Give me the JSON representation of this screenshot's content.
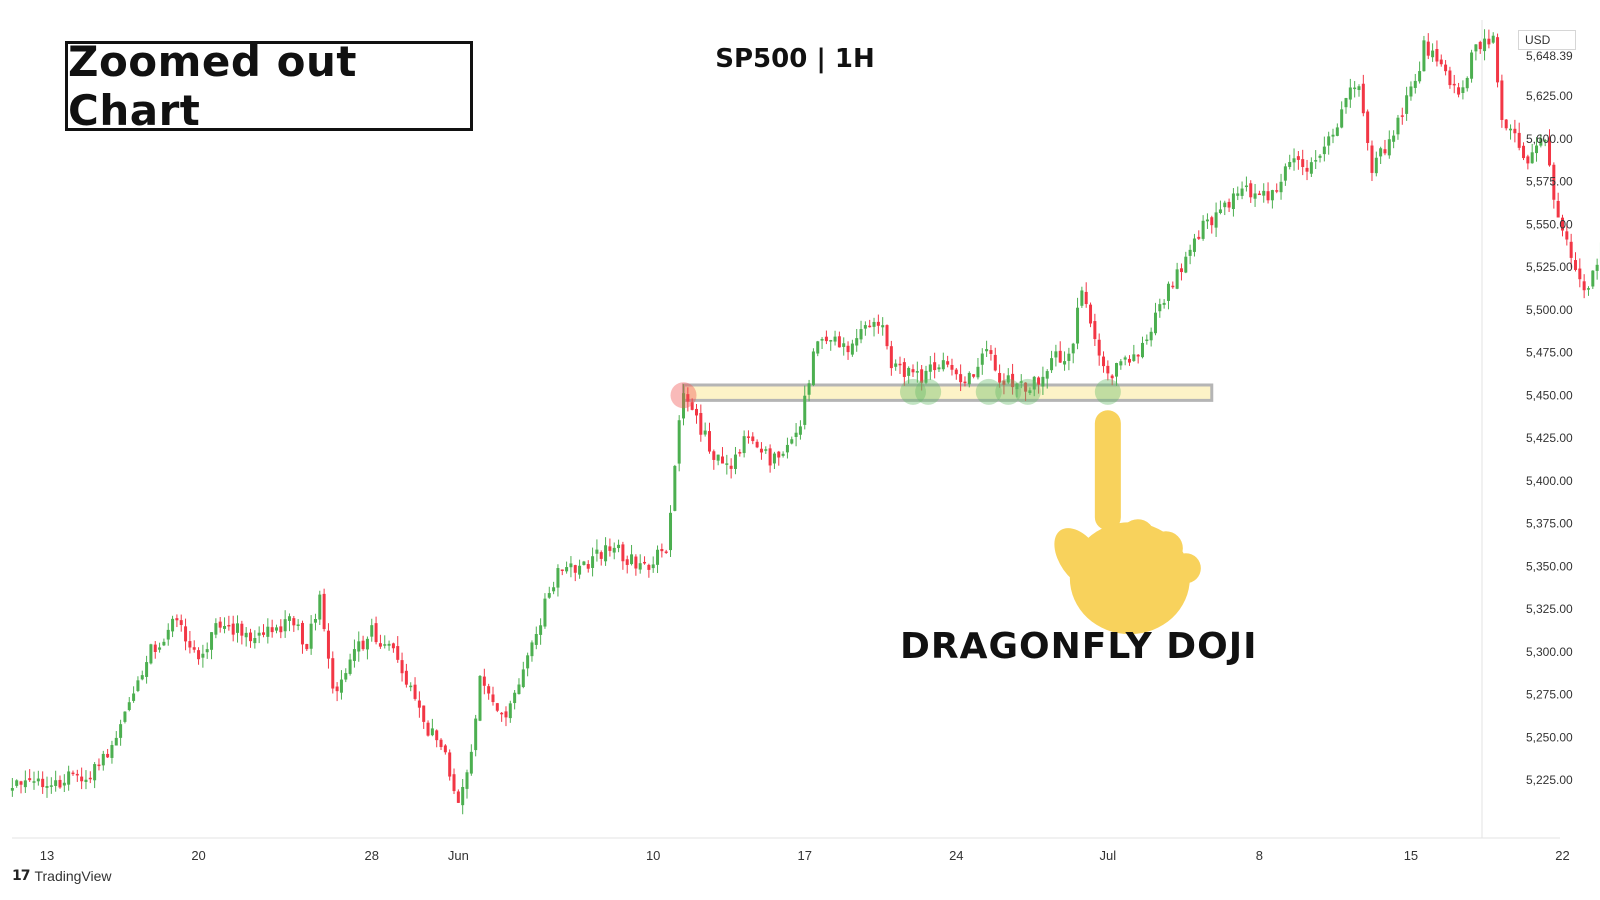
{
  "annotations": {
    "corner_title": "Zoomed out Chart",
    "symbol": "SP500 | 1H",
    "pattern_label": "DRAGONFLY DOJI"
  },
  "colors": {
    "up": "#4caf50",
    "down": "#f23645",
    "support_fill": "#fdf3c7",
    "support_stroke": "#b5b5b5",
    "touch_up": "#66bb6a",
    "touch_down": "#ef5350",
    "hand": "#f8d25c"
  },
  "icons": {
    "pointer": "pointing-down-hand-icon",
    "brand": "tradingview-logo-icon"
  },
  "brand": {
    "logo_glyph": "17",
    "name": "TradingView"
  },
  "chart_data": {
    "type": "candlestick",
    "timeframe": "1H",
    "currency": "USD",
    "current_price_label": "5,648.39",
    "ylim": [
      5205,
      5690
    ],
    "y_ticks": [
      "5,225.00",
      "5,250.00",
      "5,275.00",
      "5,300.00",
      "5,325.00",
      "5,350.00",
      "5,375.00",
      "5,400.00",
      "5,425.00",
      "5,450.00",
      "5,475.00",
      "5,500.00",
      "5,525.00",
      "5,550.00",
      "5,575.00",
      "5,600.00",
      "5,625.00"
    ],
    "x_ticks": [
      {
        "label": "13",
        "day": 0
      },
      {
        "label": "20",
        "day": 7
      },
      {
        "label": "28",
        "day": 15
      },
      {
        "label": "Jun",
        "day": 19
      },
      {
        "label": "10",
        "day": 28
      },
      {
        "label": "17",
        "day": 35
      },
      {
        "label": "24",
        "day": 42
      },
      {
        "label": "Jul",
        "day": 49
      },
      {
        "label": "8",
        "day": 56
      },
      {
        "label": "15",
        "day": 63
      },
      {
        "label": "22",
        "day": 70
      }
    ],
    "path_anchors": [
      {
        "day": -1.6,
        "price": 5220
      },
      {
        "day": 2.0,
        "price": 5228
      },
      {
        "day": 3.2,
        "price": 5248
      },
      {
        "day": 4.8,
        "price": 5300
      },
      {
        "day": 6.0,
        "price": 5318
      },
      {
        "day": 7.0,
        "price": 5296
      },
      {
        "day": 8.0,
        "price": 5318
      },
      {
        "day": 9.5,
        "price": 5308
      },
      {
        "day": 11.2,
        "price": 5318
      },
      {
        "day": 12.0,
        "price": 5305
      },
      {
        "day": 12.6,
        "price": 5330
      },
      {
        "day": 13.3,
        "price": 5270
      },
      {
        "day": 14.2,
        "price": 5300
      },
      {
        "day": 15.0,
        "price": 5312
      },
      {
        "day": 16.0,
        "price": 5300
      },
      {
        "day": 16.8,
        "price": 5278
      },
      {
        "day": 17.6,
        "price": 5255
      },
      {
        "day": 18.3,
        "price": 5242
      },
      {
        "day": 18.9,
        "price": 5212
      },
      {
        "day": 19.5,
        "price": 5230
      },
      {
        "day": 20.0,
        "price": 5285
      },
      {
        "day": 21.0,
        "price": 5260
      },
      {
        "day": 22.0,
        "price": 5290
      },
      {
        "day": 23.5,
        "price": 5345
      },
      {
        "day": 25.0,
        "price": 5352
      },
      {
        "day": 26.0,
        "price": 5363
      },
      {
        "day": 27.5,
        "price": 5348
      },
      {
        "day": 28.6,
        "price": 5362
      },
      {
        "day": 29.4,
        "price": 5455
      },
      {
        "day": 30.2,
        "price": 5430
      },
      {
        "day": 31.3,
        "price": 5405
      },
      {
        "day": 32.4,
        "price": 5427
      },
      {
        "day": 33.5,
        "price": 5410
      },
      {
        "day": 34.8,
        "price": 5435
      },
      {
        "day": 35.6,
        "price": 5485
      },
      {
        "day": 37.0,
        "price": 5478
      },
      {
        "day": 38.4,
        "price": 5495
      },
      {
        "day": 39.0,
        "price": 5470
      },
      {
        "day": 40.2,
        "price": 5460
      },
      {
        "day": 41.3,
        "price": 5468
      },
      {
        "day": 42.2,
        "price": 5455
      },
      {
        "day": 43.5,
        "price": 5475
      },
      {
        "day": 44.0,
        "price": 5458
      },
      {
        "day": 45.5,
        "price": 5455
      },
      {
        "day": 46.6,
        "price": 5475
      },
      {
        "day": 47.3,
        "price": 5470
      },
      {
        "day": 47.8,
        "price": 5515
      },
      {
        "day": 48.4,
        "price": 5480
      },
      {
        "day": 49.2,
        "price": 5462
      },
      {
        "day": 50.3,
        "price": 5475
      },
      {
        "day": 51.0,
        "price": 5490
      },
      {
        "day": 52.2,
        "price": 5522
      },
      {
        "day": 53.5,
        "price": 5550
      },
      {
        "day": 55.3,
        "price": 5570
      },
      {
        "day": 56.5,
        "price": 5567
      },
      {
        "day": 57.4,
        "price": 5585
      },
      {
        "day": 58.6,
        "price": 5585
      },
      {
        "day": 59.6,
        "price": 5610
      },
      {
        "day": 60.5,
        "price": 5635
      },
      {
        "day": 61.2,
        "price": 5580
      },
      {
        "day": 62.3,
        "price": 5608
      },
      {
        "day": 63.3,
        "price": 5638
      },
      {
        "day": 63.6,
        "price": 5655
      },
      {
        "day": 64.6,
        "price": 5640
      },
      {
        "day": 65.3,
        "price": 5625
      },
      {
        "day": 65.8,
        "price": 5650
      },
      {
        "day": 66.8,
        "price": 5660
      },
      {
        "day": 67.2,
        "price": 5608
      },
      {
        "day": 68.4,
        "price": 5590
      },
      {
        "day": 69.2,
        "price": 5600
      },
      {
        "day": 69.8,
        "price": 5550
      },
      {
        "day": 70.4,
        "price": 5530
      },
      {
        "day": 71.2,
        "price": 5510
      },
      {
        "day": 72.0,
        "price": 5545
      },
      {
        "day": 72.8,
        "price": 5555
      },
      {
        "day": 73.0,
        "price": 5560
      }
    ],
    "support_zone": {
      "from_day": 29.4,
      "to_day": 53.8,
      "low": 5447,
      "high": 5456
    },
    "zone_touches": [
      {
        "day": 29.4,
        "price": 5450,
        "kind": "down"
      },
      {
        "day": 40.0,
        "price": 5452,
        "kind": "up"
      },
      {
        "day": 40.7,
        "price": 5452,
        "kind": "up"
      },
      {
        "day": 43.5,
        "price": 5452,
        "kind": "up"
      },
      {
        "day": 44.4,
        "price": 5452,
        "kind": "up"
      },
      {
        "day": 45.3,
        "price": 5452,
        "kind": "up"
      },
      {
        "day": 49.0,
        "price": 5452,
        "kind": "up"
      }
    ],
    "pointer": {
      "day": 49.0,
      "price": 5412
    }
  }
}
